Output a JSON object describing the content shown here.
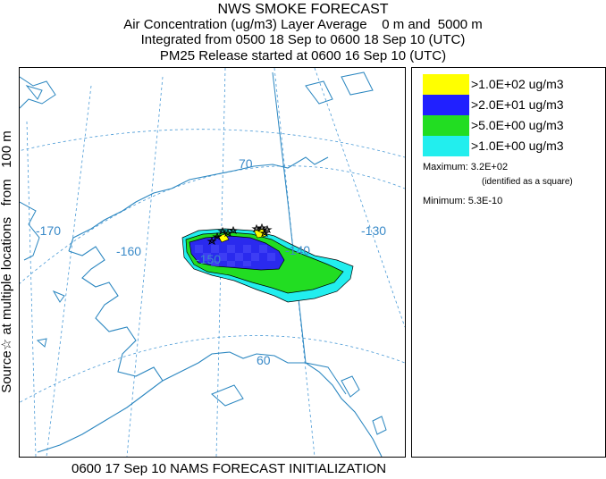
{
  "title": {
    "line1": "NWS SMOKE FORECAST",
    "line2": "Air Concentration (ug/m3) Layer Average    0 m and  5000 m",
    "line3": "Integrated from 0500 18 Sep to 0600 18 Sep 10 (UTC)",
    "line4": "PM25 Release started at 0600 16 Sep 10 (UTC)"
  },
  "side_label": "Source☆ at multiple locations   from   100 m",
  "footer": "0600 17 Sep 10 NAMS FORECAST INITIALIZATION",
  "map": {
    "grid_labels": {
      "lon_170": "-170",
      "lon_160": "-160",
      "lon_150": "-150",
      "lon_140": "-140",
      "lon_130": "-130",
      "lat_70": "70",
      "lat_60": "60"
    },
    "colors": {
      "coast": "#2a86c0",
      "grid": "#4a9ad6",
      "level_100": "#ffff00",
      "level_20": "#2a2aee",
      "level_5": "#22dd22",
      "level_1": "#22eeee"
    }
  },
  "legend": {
    "items": [
      {
        "color": "#ffff00",
        "label": ">1.0E+02 ug/m3"
      },
      {
        "color": "#2020ff",
        "label": ">2.0E+01 ug/m3"
      },
      {
        "color": "#22dd22",
        "label": ">5.0E+00 ug/m3"
      },
      {
        "color": "#22eeee",
        "label": ">1.0E+00 ug/m3"
      }
    ],
    "maximum": "Maximum: 3.2E+02",
    "maximum_note": "(identified as a square)",
    "minimum": "Minimum: 5.3E-10"
  }
}
